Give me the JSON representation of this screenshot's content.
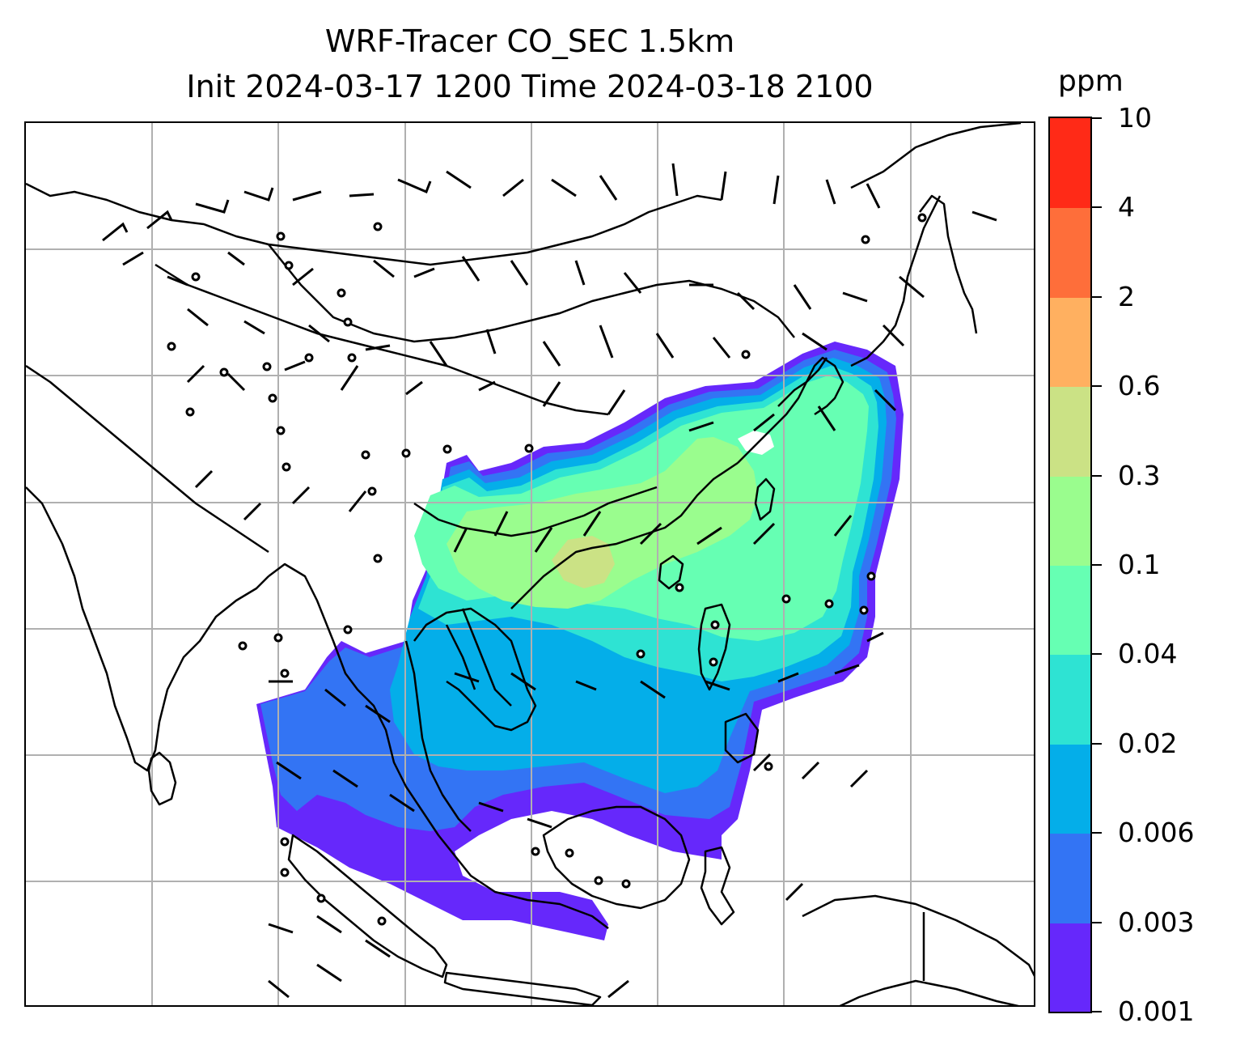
{
  "title": {
    "line1": "WRF-Tracer CO_SEC 1.5km",
    "line2": "Init 2024-03-17 1200 Time 2024-03-18 2100"
  },
  "colorbar": {
    "unit": "ppm",
    "levels": [
      "0.001",
      "0.003",
      "0.006",
      "0.02",
      "0.04",
      "0.1",
      "0.3",
      "0.6",
      "2",
      "4",
      "10"
    ],
    "colors": [
      "#6628fb",
      "#3374f4",
      "#04aee9",
      "#2ee3d3",
      "#66ffb3",
      "#9afd8e",
      "#cbe285",
      "#ffb060",
      "#fe6e3a",
      "#ff2a17"
    ]
  },
  "map": {
    "background": "#ffffff",
    "coastline_color": "#000000",
    "gridline_color": "#b0b0b0",
    "wind_barb_color": "#000000"
  }
}
